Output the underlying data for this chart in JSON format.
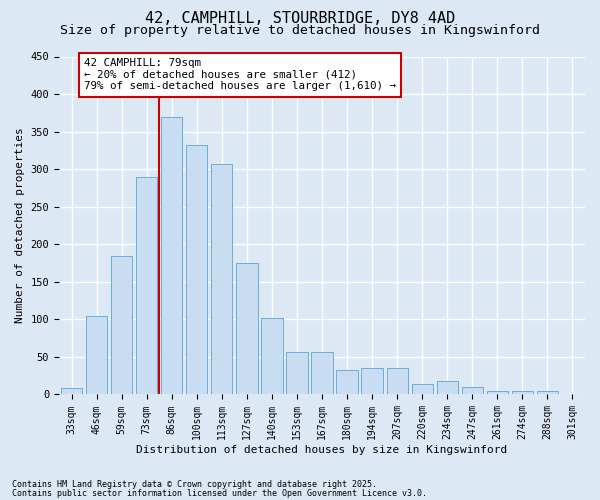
{
  "title1": "42, CAMPHILL, STOURBRIDGE, DY8 4AD",
  "title2": "Size of property relative to detached houses in Kingswinford",
  "xlabel": "Distribution of detached houses by size in Kingswinford",
  "ylabel": "Number of detached properties",
  "categories": [
    "33sqm",
    "46sqm",
    "59sqm",
    "73sqm",
    "86sqm",
    "100sqm",
    "113sqm",
    "127sqm",
    "140sqm",
    "153sqm",
    "167sqm",
    "180sqm",
    "194sqm",
    "207sqm",
    "220sqm",
    "234sqm",
    "247sqm",
    "261sqm",
    "274sqm",
    "288sqm",
    "301sqm"
  ],
  "values": [
    9,
    105,
    184,
    290,
    370,
    332,
    307,
    175,
    102,
    57,
    57,
    32,
    35,
    35,
    14,
    18,
    10,
    5,
    4,
    4,
    1
  ],
  "bar_color": "#c9ddf2",
  "bar_edge_color": "#6bacd4",
  "background_color": "#dce8f4",
  "grid_color": "#ffffff",
  "vline_x_index": 4,
  "vline_color": "#cc0000",
  "annotation_line1": "42 CAMPHILL: 79sqm",
  "annotation_line2": "← 20% of detached houses are smaller (412)",
  "annotation_line3": "79% of semi-detached houses are larger (1,610) →",
  "annotation_box_facecolor": "#ffffff",
  "annotation_box_edgecolor": "#cc0000",
  "ylim": [
    0,
    450
  ],
  "yticks": [
    0,
    50,
    100,
    150,
    200,
    250,
    300,
    350,
    400,
    450
  ],
  "footnote1": "Contains HM Land Registry data © Crown copyright and database right 2025.",
  "footnote2": "Contains public sector information licensed under the Open Government Licence v3.0.",
  "title_fontsize": 11,
  "subtitle_fontsize": 9.5,
  "tick_fontsize": 7,
  "label_fontsize": 8,
  "annotation_fontsize": 7.8,
  "footnote_fontsize": 6
}
